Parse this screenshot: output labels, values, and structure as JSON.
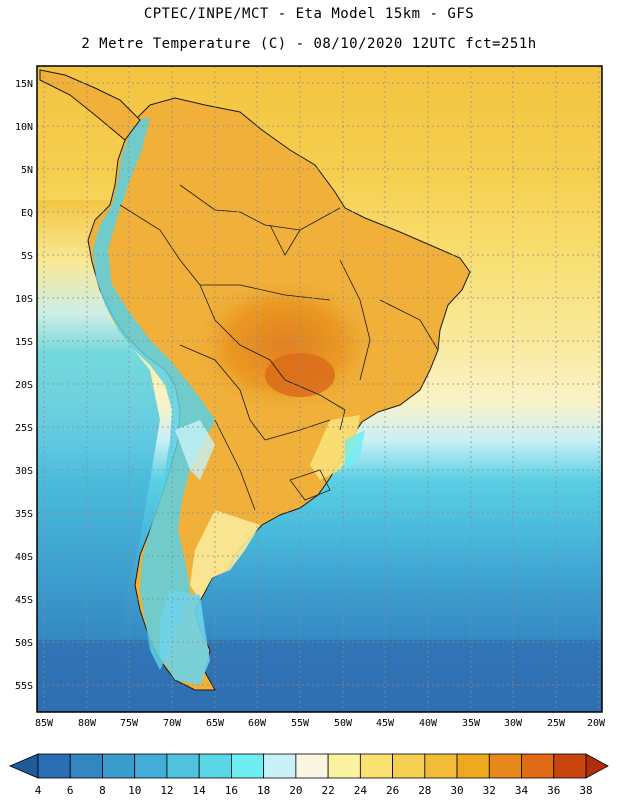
{
  "title": {
    "line1": "CPTEC/INPE/MCT -  Eta Model 15km - GFS",
    "line2": "2 Metre Temperature (C) - 08/10/2020 12UTC fct=251h"
  },
  "axes": {
    "lat_labels": [
      "15N",
      "10N",
      "5N",
      "EQ",
      "5S",
      "10S",
      "15S",
      "20S",
      "25S",
      "30S",
      "35S",
      "40S",
      "45S",
      "50S",
      "55S"
    ],
    "lon_labels": [
      "85W",
      "80W",
      "75W",
      "70W",
      "65W",
      "60W",
      "55W",
      "50W",
      "45W",
      "40W",
      "35W",
      "30W",
      "25W",
      "20W"
    ]
  },
  "colorbar": {
    "labels": [
      "4",
      "6",
      "8",
      "10",
      "12",
      "14",
      "16",
      "18",
      "20",
      "22",
      "24",
      "26",
      "28",
      "30",
      "32",
      "34",
      "36",
      "38"
    ],
    "colors": [
      "#2a6fb4",
      "#3386c0",
      "#3a9bcd",
      "#42add6",
      "#4fc2de",
      "#5bd6e6",
      "#6eeef2",
      "#c8f2f8",
      "#fbf6e2",
      "#faf2a0",
      "#f9e070",
      "#f5cf52",
      "#f2bc38",
      "#efa91f",
      "#e9891c",
      "#e06a15",
      "#c9440e"
    ],
    "low_arrow_color": "#1f5b9a",
    "high_arrow_color": "#b02f0a"
  },
  "map": {
    "land_warm": "#f0b03a",
    "land_hot": "#e07a20",
    "ocean_tropical": "#f7cf4e",
    "ocean_subtropical": "#f9ea8a",
    "ocean_temperate": "#4fc2de",
    "ocean_cold": "#2f6fb4",
    "andes_cold": "#6eeef2"
  }
}
